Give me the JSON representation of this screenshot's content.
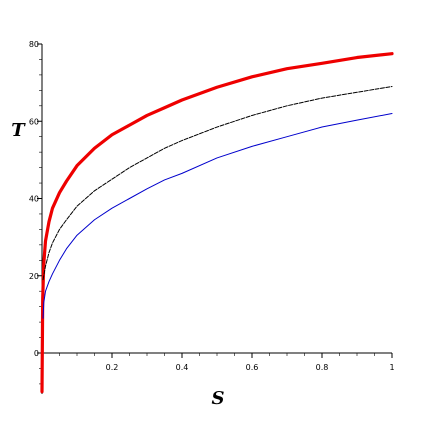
{
  "chart_data": {
    "type": "line",
    "xlabel": "S",
    "ylabel": "T",
    "xlim": [
      0,
      1
    ],
    "ylim": [
      -10,
      80
    ],
    "x_ticks": [
      0.2,
      0.4,
      0.6,
      0.8,
      1
    ],
    "x_tick_labels": [
      "0.2",
      "0.4",
      "0.6",
      "0.8",
      "1"
    ],
    "y_ticks": [
      0,
      20,
      40,
      60,
      80
    ],
    "y_tick_labels": [
      "0",
      "20",
      "40",
      "60",
      "80"
    ],
    "grid": false,
    "legend": "none",
    "series": [
      {
        "color": "#ee0000",
        "line_width": 3.2,
        "dash": "solid",
        "points": [
          [
            0,
            -10
          ],
          [
            0.002,
            14
          ],
          [
            0.005,
            23
          ],
          [
            0.01,
            29
          ],
          [
            0.02,
            34
          ],
          [
            0.03,
            37.5
          ],
          [
            0.05,
            41.5
          ],
          [
            0.07,
            44.5
          ],
          [
            0.1,
            48.5
          ],
          [
            0.15,
            53
          ],
          [
            0.2,
            56.5
          ],
          [
            0.25,
            59
          ],
          [
            0.3,
            61.5
          ],
          [
            0.35,
            63.5
          ],
          [
            0.4,
            65.5
          ],
          [
            0.5,
            68.8
          ],
          [
            0.6,
            71.5
          ],
          [
            0.7,
            73.6
          ],
          [
            0.8,
            75
          ],
          [
            0.9,
            76.5
          ],
          [
            1.0,
            77.5
          ]
        ]
      },
      {
        "color": "#000000",
        "line_width": 1,
        "dash": "4,1.5",
        "points": [
          [
            0.003,
            19
          ],
          [
            0.01,
            22.5
          ],
          [
            0.02,
            26
          ],
          [
            0.03,
            28.5
          ],
          [
            0.05,
            32
          ],
          [
            0.07,
            34.5
          ],
          [
            0.1,
            38
          ],
          [
            0.15,
            42
          ],
          [
            0.2,
            45
          ],
          [
            0.25,
            48
          ],
          [
            0.3,
            50.5
          ],
          [
            0.35,
            53
          ],
          [
            0.4,
            55
          ],
          [
            0.5,
            58.5
          ],
          [
            0.6,
            61.5
          ],
          [
            0.7,
            64
          ],
          [
            0.8,
            66
          ],
          [
            0.9,
            67.5
          ],
          [
            1.0,
            69
          ]
        ]
      },
      {
        "color": "#0000cc",
        "line_width": 1,
        "dash": "solid",
        "points": [
          [
            0.003,
            9
          ],
          [
            0.005,
            13
          ],
          [
            0.01,
            16
          ],
          [
            0.02,
            18.5
          ],
          [
            0.03,
            20.5
          ],
          [
            0.05,
            24
          ],
          [
            0.07,
            27
          ],
          [
            0.1,
            30.5
          ],
          [
            0.15,
            34.5
          ],
          [
            0.2,
            37.5
          ],
          [
            0.25,
            40
          ],
          [
            0.3,
            42.5
          ],
          [
            0.35,
            44.8
          ],
          [
            0.4,
            46.5
          ],
          [
            0.5,
            50.5
          ],
          [
            0.6,
            53.5
          ],
          [
            0.7,
            56
          ],
          [
            0.8,
            58.5
          ],
          [
            0.9,
            60.3
          ],
          [
            1.0,
            62
          ]
        ]
      }
    ]
  }
}
